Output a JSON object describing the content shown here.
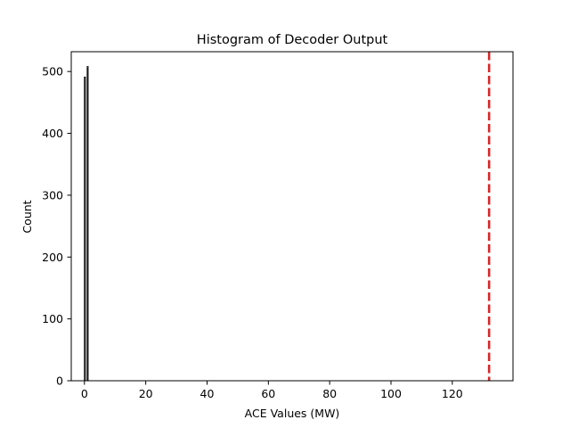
{
  "chart_data": {
    "type": "bar",
    "title": "Histogram of Decoder Output",
    "xlabel": "ACE Values (MW)",
    "ylabel": "Count",
    "xlim": [
      -4.3,
      139.8
    ],
    "ylim": [
      0,
      532
    ],
    "xticks": [
      0,
      20,
      40,
      60,
      80,
      100,
      120
    ],
    "yticks": [
      0,
      100,
      200,
      300,
      400,
      500
    ],
    "grid": false,
    "bins": [
      {
        "x0": 0.0,
        "x1": 0.3,
        "count": 491
      },
      {
        "x0": 0.9,
        "x1": 1.2,
        "count": 508
      }
    ],
    "reference_line": {
      "x": 132,
      "style": "dashed",
      "color": "#d62728"
    },
    "colors": {
      "bar_fill": "#ffffff",
      "bar_edge": "#000000",
      "axis": "#000000"
    }
  }
}
